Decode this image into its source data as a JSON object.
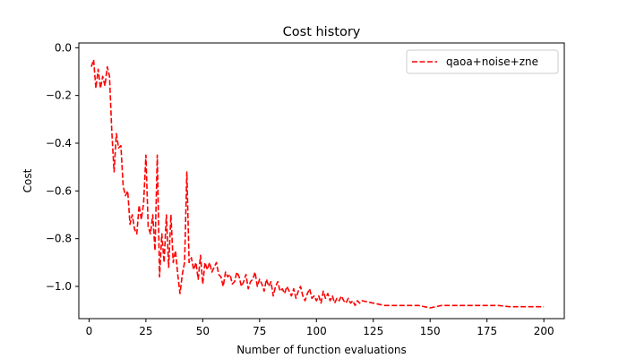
{
  "chart_data": {
    "type": "line",
    "title": "Cost history",
    "xlabel": "Number of function evaluations",
    "ylabel": "Cost",
    "xlim": [
      -4.5,
      209
    ],
    "ylim": [
      -1.135,
      0.02
    ],
    "xticks": [
      0,
      25,
      50,
      75,
      100,
      125,
      150,
      175,
      200
    ],
    "yticks": [
      0.0,
      -0.2,
      -0.4,
      -0.6,
      -0.8,
      -1.0
    ],
    "ytick_labels": [
      "0.0",
      "−0.2",
      "−0.4",
      "−0.6",
      "−0.8",
      "−1.0"
    ],
    "grid": false,
    "legend_position": "top-right",
    "series": [
      {
        "name": "qaoa+noise+zne",
        "color": "#ff0000",
        "style": "dashed",
        "x": [
          1,
          2,
          3,
          4,
          5,
          6,
          7,
          8,
          9,
          10,
          11,
          12,
          13,
          14,
          15,
          16,
          17,
          18,
          19,
          20,
          21,
          22,
          23,
          24,
          25,
          26,
          27,
          28,
          29,
          30,
          31,
          32,
          33,
          34,
          35,
          36,
          37,
          38,
          39,
          40,
          41,
          42,
          43,
          44,
          45,
          46,
          47,
          48,
          49,
          50,
          51,
          52,
          53,
          54,
          55,
          56,
          57,
          58,
          59,
          60,
          61,
          62,
          63,
          64,
          65,
          66,
          67,
          68,
          69,
          70,
          71,
          72,
          73,
          74,
          75,
          76,
          77,
          78,
          79,
          80,
          81,
          82,
          83,
          84,
          85,
          86,
          87,
          88,
          89,
          90,
          91,
          92,
          93,
          94,
          95,
          96,
          97,
          98,
          99,
          100,
          101,
          102,
          103,
          104,
          105,
          106,
          107,
          108,
          109,
          110,
          111,
          112,
          113,
          114,
          115,
          116,
          117,
          118,
          119,
          120,
          125,
          130,
          135,
          140,
          145,
          150,
          155,
          160,
          165,
          170,
          175,
          180,
          185,
          190,
          195,
          200
        ],
        "y": [
          -0.08,
          -0.05,
          -0.17,
          -0.09,
          -0.17,
          -0.12,
          -0.16,
          -0.08,
          -0.12,
          -0.35,
          -0.52,
          -0.36,
          -0.42,
          -0.41,
          -0.58,
          -0.62,
          -0.6,
          -0.74,
          -0.7,
          -0.76,
          -0.78,
          -0.66,
          -0.72,
          -0.65,
          -0.45,
          -0.75,
          -0.78,
          -0.7,
          -0.85,
          -0.45,
          -0.96,
          -0.78,
          -0.9,
          -0.7,
          -0.92,
          -0.7,
          -0.9,
          -0.85,
          -0.95,
          -1.03,
          -0.95,
          -0.9,
          -0.52,
          -0.9,
          -0.88,
          -0.93,
          -0.9,
          -0.97,
          -0.87,
          -0.99,
          -0.9,
          -0.93,
          -0.9,
          -0.94,
          -0.92,
          -0.9,
          -0.95,
          -0.96,
          -1.0,
          -0.94,
          -0.96,
          -0.95,
          -0.99,
          -0.98,
          -0.94,
          -0.96,
          -1.0,
          -0.98,
          -0.95,
          -1.01,
          -0.98,
          -0.97,
          -0.94,
          -1.0,
          -0.97,
          -0.99,
          -1.02,
          -0.97,
          -1.0,
          -0.98,
          -1.04,
          -1.0,
          -0.98,
          -1.02,
          -1.01,
          -1.03,
          -1.0,
          -1.02,
          -1.04,
          -1.01,
          -1.05,
          -1.02,
          -1.0,
          -1.04,
          -1.06,
          -1.03,
          -1.01,
          -1.05,
          -1.04,
          -1.06,
          -1.04,
          -1.07,
          -1.02,
          -1.05,
          -1.03,
          -1.06,
          -1.04,
          -1.07,
          -1.05,
          -1.06,
          -1.04,
          -1.06,
          -1.07,
          -1.05,
          -1.07,
          -1.06,
          -1.08,
          -1.06,
          -1.07,
          -1.06,
          -1.07,
          -1.08,
          -1.08,
          -1.08,
          -1.08,
          -1.09,
          -1.08,
          -1.08,
          -1.08,
          -1.08,
          -1.08,
          -1.08,
          -1.085,
          -1.085,
          -1.085,
          -1.085
        ]
      }
    ]
  }
}
